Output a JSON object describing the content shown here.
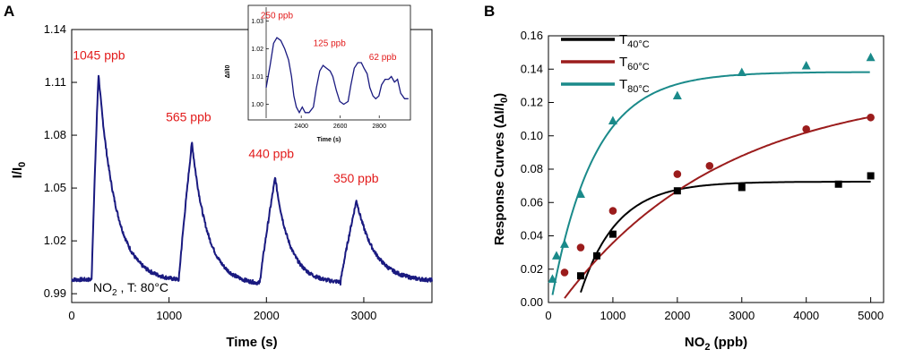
{
  "chart_data": [
    {
      "panel": "A",
      "type": "line",
      "xlabel": "Time (s)",
      "ylabel_main": "I/I",
      "ylabel_sub": "0",
      "xlim": [
        0,
        3700
      ],
      "ylim": [
        0.985,
        1.14
      ],
      "xticks": [
        0,
        1000,
        2000,
        3000
      ],
      "yticks": [
        "0.99",
        "1.02",
        "1.05",
        "1.08",
        "1.11",
        "1.14"
      ],
      "color": "#1a1a80",
      "note_main": "NO",
      "note_sub": "2",
      "note_rest": " , T: 80°C",
      "pulses": [
        {
          "start": 205,
          "peak_time": 275,
          "peak": 1.115,
          "end": 1010,
          "base_end": 0.997,
          "label": "1045 ppb",
          "lx": 280,
          "ly": 1.123
        },
        {
          "start": 1100,
          "peak_time": 1235,
          "peak": 1.076,
          "end": 1910,
          "base_end": 0.995,
          "label": "565 ppb",
          "lx": 1200,
          "ly": 1.088
        },
        {
          "start": 1930,
          "peak_time": 2090,
          "peak": 1.056,
          "end": 2720,
          "base_end": 0.996,
          "label": "440 ppb",
          "lx": 2050,
          "ly": 1.067
        },
        {
          "start": 2760,
          "peak_time": 2925,
          "peak": 1.043,
          "end": 3700,
          "base_end": 0.997,
          "label": "350 ppb",
          "lx": 2920,
          "ly": 1.053
        }
      ],
      "inset": {
        "xlabel": "Time (s)",
        "ylabel": "ΔI/I0",
        "xlim": [
          2220,
          2960
        ],
        "ylim": [
          0.995,
          1.035
        ],
        "xticks": [
          2400,
          2600,
          2800
        ],
        "yticks": [
          "1.00",
          "1.01",
          "1.02",
          "1.03"
        ],
        "points": [
          [
            2220,
            1.006
          ],
          [
            2240,
            1.014
          ],
          [
            2258,
            1.022
          ],
          [
            2275,
            1.024
          ],
          [
            2295,
            1.023
          ],
          [
            2315,
            1.02
          ],
          [
            2335,
            1.016
          ],
          [
            2350,
            1.01
          ],
          [
            2362,
            1.003
          ],
          [
            2375,
            0.999
          ],
          [
            2390,
            0.997
          ],
          [
            2405,
            0.999
          ],
          [
            2420,
            0.997
          ],
          [
            2440,
            0.997
          ],
          [
            2462,
            0.999
          ],
          [
            2478,
            1.006
          ],
          [
            2495,
            1.012
          ],
          [
            2512,
            1.014
          ],
          [
            2530,
            1.013
          ],
          [
            2548,
            1.012
          ],
          [
            2562,
            1.01
          ],
          [
            2580,
            1.005
          ],
          [
            2598,
            1.001
          ],
          [
            2618,
            1.0
          ],
          [
            2640,
            1.001
          ],
          [
            2655,
            1.007
          ],
          [
            2672,
            1.013
          ],
          [
            2690,
            1.015
          ],
          [
            2708,
            1.015
          ],
          [
            2722,
            1.013
          ],
          [
            2738,
            1.011
          ],
          [
            2752,
            1.006
          ],
          [
            2768,
            1.003
          ],
          [
            2782,
            1.002
          ],
          [
            2798,
            1.003
          ],
          [
            2812,
            1.007
          ],
          [
            2830,
            1.009
          ],
          [
            2848,
            1.009
          ],
          [
            2862,
            1.01
          ],
          [
            2878,
            1.008
          ],
          [
            2894,
            1.009
          ],
          [
            2910,
            1.004
          ],
          [
            2930,
            1.002
          ],
          [
            2950,
            1.002
          ]
        ],
        "labels": [
          {
            "text": "250 ppb",
            "x": 2275,
            "y": 1.031
          },
          {
            "text": "125 ppb",
            "x": 2545,
            "y": 1.021
          },
          {
            "text": "62 ppb",
            "x": 2818,
            "y": 1.016
          }
        ]
      }
    },
    {
      "panel": "B",
      "type": "scatter",
      "xlabel_main": "NO",
      "xlabel_sub": "2",
      "xlabel_rest": " (ppb)",
      "ylabel": "Response Curves (ΔI/I",
      "ylabel_sub": "0",
      "ylabel_end": ")",
      "xlim": [
        0,
        5200
      ],
      "ylim": [
        0,
        0.16
      ],
      "xticks": [
        0,
        1000,
        2000,
        3000,
        4000,
        5000
      ],
      "yticks": [
        "0.00",
        "0.02",
        "0.04",
        "0.06",
        "0.08",
        "0.10",
        "0.12",
        "0.14",
        "0.16"
      ],
      "series": [
        {
          "name_main": "T",
          "name_sub": "40°C",
          "color": "#000000",
          "marker": "square",
          "x": [
            500,
            750,
            1000,
            2000,
            3000,
            4500,
            5000
          ],
          "y": [
            0.016,
            0.028,
            0.041,
            0.067,
            0.069,
            0.071,
            0.076
          ],
          "fit": {
            "A": 0.0725,
            "k": 0.00175,
            "x0": 450
          }
        },
        {
          "name_main": "T",
          "name_sub": "60°C",
          "color": "#9b1c1c",
          "marker": "circle",
          "x": [
            250,
            500,
            1000,
            2000,
            2500,
            4000,
            5000
          ],
          "y": [
            0.018,
            0.033,
            0.055,
            0.077,
            0.082,
            0.104,
            0.111
          ],
          "fit": {
            "A": 0.1305,
            "k": 0.0004,
            "x0": 200
          }
        },
        {
          "name_main": "T",
          "name_sub": "80°C",
          "color": "#1a8a8a",
          "marker": "triangle",
          "x": [
            62,
            125,
            250,
            500,
            1000,
            2000,
            3000,
            4000,
            5000
          ],
          "y": [
            0.014,
            0.028,
            0.035,
            0.065,
            0.109,
            0.124,
            0.138,
            0.142,
            0.147
          ],
          "fit": {
            "A": 0.1383,
            "k": 0.0015,
            "x0": 40
          }
        }
      ]
    }
  ]
}
